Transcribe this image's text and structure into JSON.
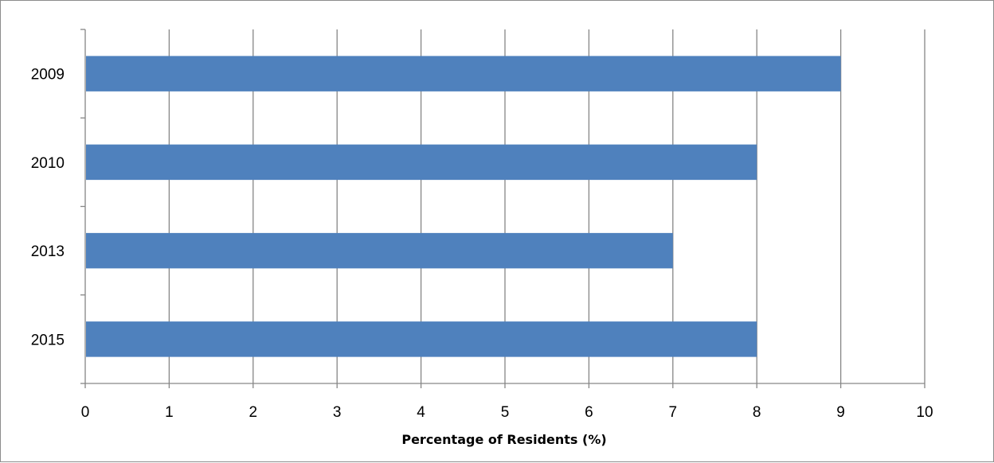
{
  "chart_data": {
    "type": "bar",
    "orientation": "horizontal",
    "categories": [
      "2009",
      "2010",
      "2013",
      "2015"
    ],
    "values": [
      9,
      8,
      7,
      8
    ],
    "xlabel": "Percentage of Residents (%)",
    "ylabel": "",
    "xlim": [
      0,
      10
    ],
    "x_ticks": [
      "0",
      "1",
      "2",
      "3",
      "4",
      "5",
      "6",
      "7",
      "8",
      "9",
      "10"
    ],
    "grid": "vertical",
    "legend": "none",
    "bar_color": "#4F81BD",
    "grid_color": "#868686"
  }
}
